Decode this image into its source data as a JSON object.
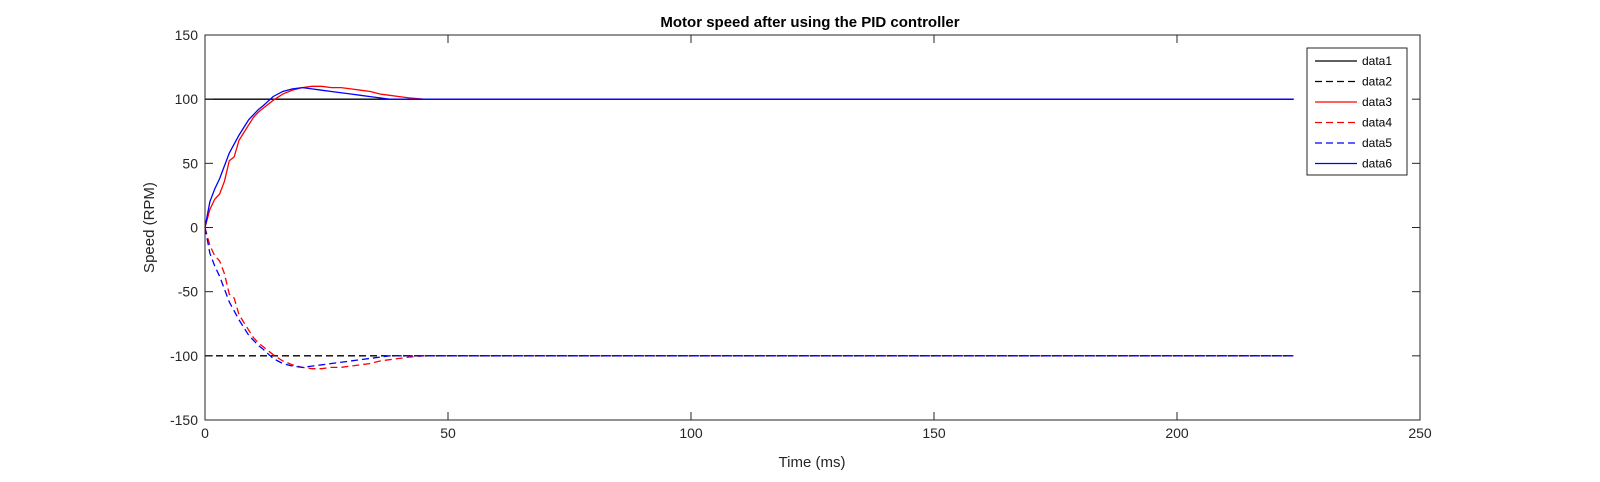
{
  "chart_data": {
    "type": "line",
    "title": "Motor speed after using the PID controller",
    "xlabel": "Time (ms)",
    "ylabel": "Speed (RPM)",
    "xlim": [
      0,
      250
    ],
    "ylim": [
      -150,
      150
    ],
    "xticks": [
      0,
      50,
      100,
      150,
      200,
      250
    ],
    "yticks": [
      -150,
      -100,
      -50,
      0,
      50,
      100,
      150
    ],
    "grid": false,
    "legend_position": "top-right",
    "series": [
      {
        "name": "data1",
        "color": "#000000",
        "style": "solid",
        "x": [
          0,
          224
        ],
        "y": [
          100,
          100
        ]
      },
      {
        "name": "data2",
        "color": "#000000",
        "style": "dashed",
        "x": [
          0,
          224
        ],
        "y": [
          -100,
          -100
        ]
      },
      {
        "name": "data3",
        "color": "#ff0000",
        "style": "solid",
        "x": [
          0,
          1,
          2,
          3,
          4,
          5,
          6,
          7,
          8,
          9,
          10,
          11,
          12,
          14,
          16,
          18,
          20,
          22,
          24,
          26,
          28,
          30,
          32,
          34,
          36,
          38,
          40,
          42,
          45,
          48,
          50,
          224
        ],
        "y": [
          0,
          14,
          22,
          26,
          36,
          52,
          55,
          68,
          74,
          80,
          86,
          90,
          93,
          99,
          104,
          107,
          109,
          110,
          110,
          109,
          109,
          108,
          107,
          106,
          104,
          103,
          102,
          101,
          100,
          100,
          100,
          100
        ]
      },
      {
        "name": "data4",
        "color": "#ff0000",
        "style": "dashed",
        "x": [
          0,
          1,
          2,
          3,
          4,
          5,
          6,
          7,
          8,
          9,
          10,
          11,
          12,
          14,
          16,
          18,
          20,
          22,
          24,
          26,
          28,
          30,
          32,
          34,
          36,
          38,
          40,
          42,
          45,
          48,
          50,
          224
        ],
        "y": [
          0,
          -14,
          -22,
          -26,
          -36,
          -52,
          -55,
          -68,
          -74,
          -80,
          -86,
          -90,
          -93,
          -99,
          -104,
          -107,
          -109,
          -110,
          -110,
          -109,
          -109,
          -108,
          -107,
          -106,
          -104,
          -103,
          -102,
          -101,
          -100,
          -100,
          -100,
          -100
        ]
      },
      {
        "name": "data5",
        "color": "#0000ff",
        "style": "dashed",
        "x": [
          0,
          1,
          2,
          3,
          4,
          5,
          6,
          7,
          8,
          9,
          10,
          11,
          12,
          14,
          16,
          18,
          20,
          22,
          24,
          26,
          28,
          30,
          32,
          34,
          36,
          38,
          40,
          224
        ],
        "y": [
          0,
          -20,
          -30,
          -38,
          -48,
          -58,
          -65,
          -72,
          -78,
          -84,
          -88,
          -92,
          -95,
          -102,
          -106,
          -108,
          -109,
          -108,
          -107,
          -106,
          -105,
          -104,
          -103,
          -102,
          -101,
          -100,
          -100,
          -100
        ]
      },
      {
        "name": "data6",
        "color": "#0000ff",
        "style": "solid",
        "x": [
          0,
          1,
          2,
          3,
          4,
          5,
          6,
          7,
          8,
          9,
          10,
          11,
          12,
          14,
          16,
          18,
          20,
          22,
          24,
          26,
          28,
          30,
          32,
          34,
          36,
          38,
          40,
          224
        ],
        "y": [
          0,
          20,
          30,
          38,
          48,
          58,
          65,
          72,
          78,
          84,
          88,
          92,
          95,
          102,
          106,
          108,
          109,
          108,
          107,
          106,
          105,
          104,
          103,
          102,
          101,
          100,
          100,
          100
        ]
      }
    ]
  }
}
